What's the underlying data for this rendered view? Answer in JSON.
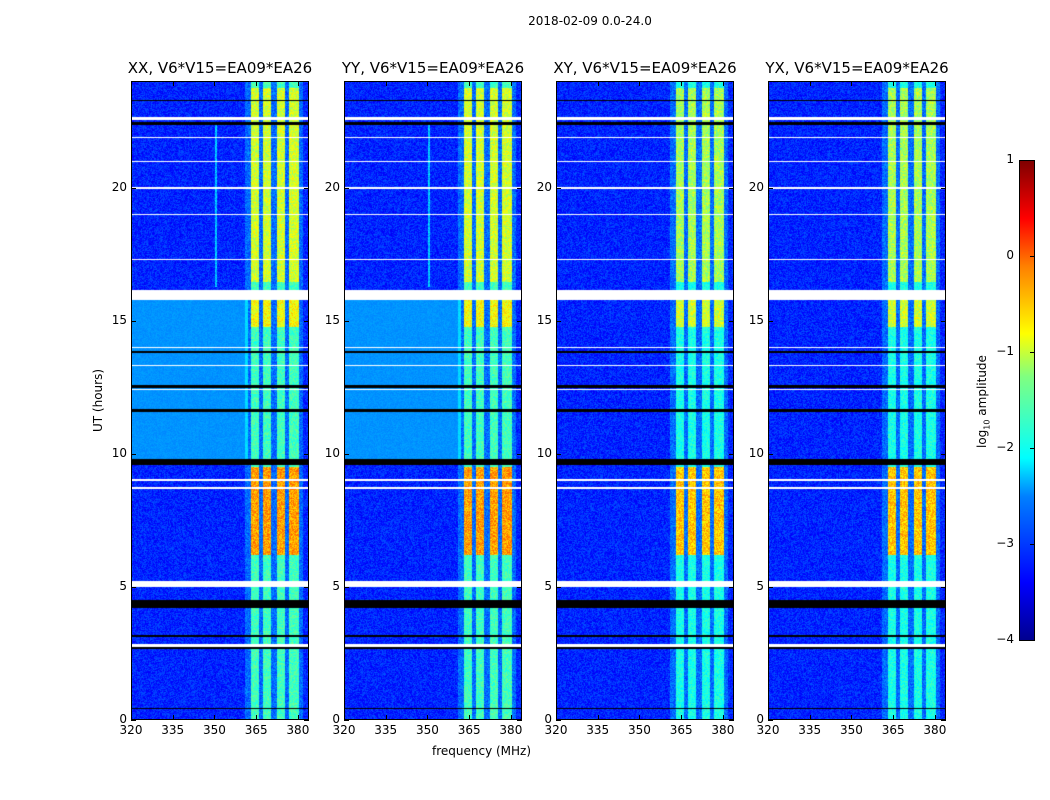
{
  "chart_data": {
    "type": "heatmap",
    "title": "2018-02-09 0.0-24.0",
    "xlabel": "frequency (MHz)",
    "ylabel": "UT (hours)",
    "xlim": [
      320,
      384
    ],
    "ylim": [
      0,
      24
    ],
    "xticks": [
      "320",
      "335",
      "350",
      "365",
      "380"
    ],
    "xtick_values": [
      320,
      335,
      350,
      365,
      380
    ],
    "yticks": [
      "0",
      "5",
      "10",
      "15",
      "20"
    ],
    "ytick_values": [
      0,
      5,
      10,
      15,
      20
    ],
    "panels": [
      {
        "title": "XX, V6*V15=EA09*EA26",
        "pol": "XX"
      },
      {
        "title": "YY, V6*V15=EA09*EA26",
        "pol": "YY"
      },
      {
        "title": "XY, V6*V15=EA09*EA26",
        "pol": "XY"
      },
      {
        "title": "YX, V6*V15=EA09*EA26",
        "pol": "YX"
      }
    ],
    "colorbar": {
      "label": "log10 amplitude",
      "label_main": "log",
      "label_sub": "10",
      "label_rest": " amplitude",
      "colormap": "jet",
      "range": [
        -4,
        1
      ],
      "ticks": [
        "1",
        "0",
        "−1",
        "−2",
        "−3",
        "−4"
      ],
      "tick_values": [
        1,
        0,
        -1,
        -2,
        -3,
        -4
      ]
    },
    "background_level": -3.2,
    "rfi_bands_mhz": [
      [
        363,
        366
      ],
      [
        367.5,
        370.5
      ],
      [
        372.5,
        375.5
      ],
      [
        377,
        380.5
      ]
    ],
    "rfi_level": -1.8,
    "rfi_bright_hours": [
      [
        6.2,
        9.5,
        -0.4
      ],
      [
        14.8,
        15.8,
        -0.9
      ],
      [
        16.5,
        23.8,
        -1.1
      ]
    ],
    "flagged_hours_white": [
      [
        15.8,
        16.2
      ],
      [
        5.0,
        5.2
      ],
      [
        2.75,
        2.85
      ],
      [
        8.7,
        8.75
      ],
      [
        9.0,
        9.05
      ],
      [
        12.4,
        12.45
      ],
      [
        13.3,
        13.35
      ],
      [
        14.0,
        14.05
      ],
      [
        17.3,
        17.35
      ],
      [
        19.0,
        19.05
      ],
      [
        20.0,
        20.05
      ],
      [
        21.0,
        21.05
      ],
      [
        21.9,
        21.95
      ],
      [
        22.6,
        22.7
      ]
    ],
    "flagged_hours_black": [
      [
        0.38,
        0.45
      ],
      [
        2.65,
        2.72
      ],
      [
        3.1,
        3.2
      ],
      [
        4.2,
        4.5
      ],
      [
        9.6,
        9.8
      ],
      [
        11.6,
        11.7
      ],
      [
        12.5,
        12.6
      ],
      [
        13.8,
        13.9
      ],
      [
        22.4,
        22.5
      ],
      [
        23.3,
        23.35
      ]
    ],
    "quiet_hours_brighter": [
      [
        9.8,
        15.8
      ]
    ]
  }
}
